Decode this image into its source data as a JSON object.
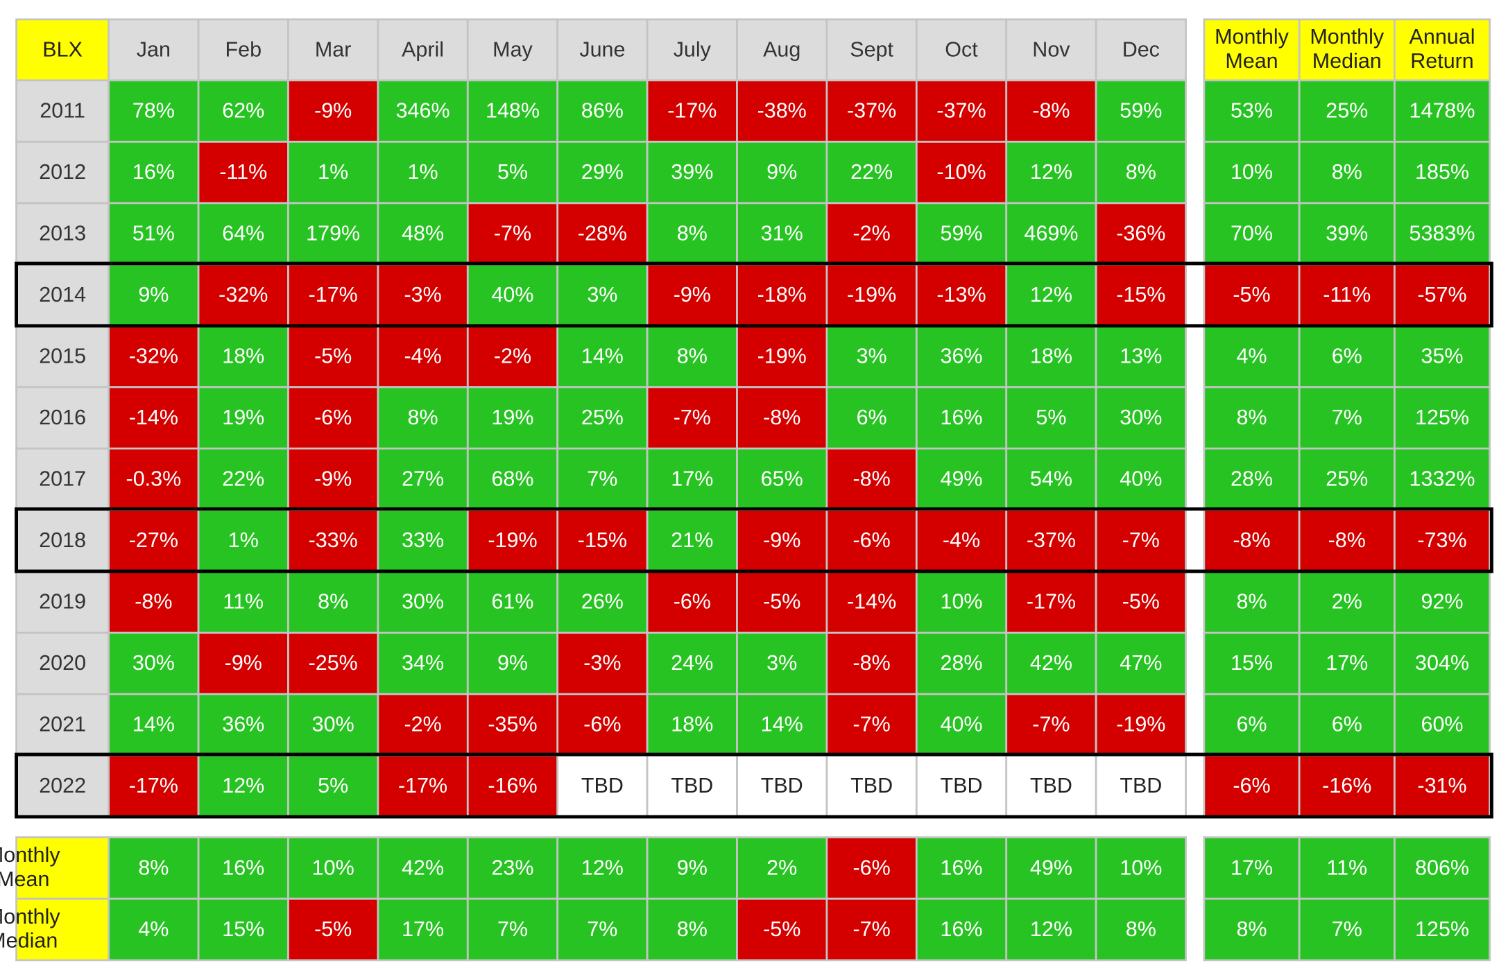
{
  "table": {
    "corner": "BLX",
    "months": [
      "Jan",
      "Feb",
      "Mar",
      "April",
      "May",
      "June",
      "July",
      "Aug",
      "Sept",
      "Oct",
      "Nov",
      "Dec"
    ],
    "summary_headers": [
      [
        "Monthly",
        "Mean"
      ],
      [
        "Monthly",
        "Median"
      ],
      [
        "Annual",
        "Return"
      ]
    ],
    "rows": [
      {
        "label": "2011",
        "months": [
          "78%",
          "62%",
          "-9%",
          "346%",
          "148%",
          "86%",
          "-17%",
          "-38%",
          "-37%",
          "-37%",
          "-8%",
          "59%"
        ],
        "summary": [
          "53%",
          "25%",
          "1478%"
        ]
      },
      {
        "label": "2012",
        "months": [
          "16%",
          "-11%",
          "1%",
          "1%",
          "5%",
          "29%",
          "39%",
          "9%",
          "22%",
          "-10%",
          "12%",
          "8%"
        ],
        "summary": [
          "10%",
          "8%",
          "185%"
        ]
      },
      {
        "label": "2013",
        "months": [
          "51%",
          "64%",
          "179%",
          "48%",
          "-7%",
          "-28%",
          "8%",
          "31%",
          "-2%",
          "59%",
          "469%",
          "-36%"
        ],
        "summary": [
          "70%",
          "39%",
          "5383%"
        ]
      },
      {
        "label": "2014",
        "months": [
          "9%",
          "-32%",
          "-17%",
          "-3%",
          "40%",
          "3%",
          "-9%",
          "-18%",
          "-19%",
          "-13%",
          "12%",
          "-15%"
        ],
        "summary": [
          "-5%",
          "-11%",
          "-57%"
        ]
      },
      {
        "label": "2015",
        "months": [
          "-32%",
          "18%",
          "-5%",
          "-4%",
          "-2%",
          "14%",
          "8%",
          "-19%",
          "3%",
          "36%",
          "18%",
          "13%"
        ],
        "summary": [
          "4%",
          "6%",
          "35%"
        ]
      },
      {
        "label": "2016",
        "months": [
          "-14%",
          "19%",
          "-6%",
          "8%",
          "19%",
          "25%",
          "-7%",
          "-8%",
          "6%",
          "16%",
          "5%",
          "30%"
        ],
        "summary": [
          "8%",
          "7%",
          "125%"
        ]
      },
      {
        "label": "2017",
        "months": [
          "-0.3%",
          "22%",
          "-9%",
          "27%",
          "68%",
          "7%",
          "17%",
          "65%",
          "-8%",
          "49%",
          "54%",
          "40%"
        ],
        "summary": [
          "28%",
          "25%",
          "1332%"
        ]
      },
      {
        "label": "2018",
        "months": [
          "-27%",
          "1%",
          "-33%",
          "33%",
          "-19%",
          "-15%",
          "21%",
          "-9%",
          "-6%",
          "-4%",
          "-37%",
          "-7%"
        ],
        "summary": [
          "-8%",
          "-8%",
          "-73%"
        ]
      },
      {
        "label": "2019",
        "months": [
          "-8%",
          "11%",
          "8%",
          "30%",
          "61%",
          "26%",
          "-6%",
          "-5%",
          "-14%",
          "10%",
          "-17%",
          "-5%"
        ],
        "summary": [
          "8%",
          "2%",
          "92%"
        ]
      },
      {
        "label": "2020",
        "months": [
          "30%",
          "-9%",
          "-25%",
          "34%",
          "9%",
          "-3%",
          "24%",
          "3%",
          "-8%",
          "28%",
          "42%",
          "47%"
        ],
        "summary": [
          "15%",
          "17%",
          "304%"
        ]
      },
      {
        "label": "2021",
        "months": [
          "14%",
          "36%",
          "30%",
          "-2%",
          "-35%",
          "-6%",
          "18%",
          "14%",
          "-7%",
          "40%",
          "-7%",
          "-19%"
        ],
        "summary": [
          "6%",
          "6%",
          "60%"
        ]
      },
      {
        "label": "2022",
        "months": [
          "-17%",
          "12%",
          "5%",
          "-17%",
          "-16%",
          "TBD",
          "TBD",
          "TBD",
          "TBD",
          "TBD",
          "TBD",
          "TBD"
        ],
        "summary": [
          "-6%",
          "-16%",
          "-31%"
        ]
      }
    ],
    "footer": [
      {
        "label": [
          "Monthly",
          "Mean"
        ],
        "months": [
          "8%",
          "16%",
          "10%",
          "42%",
          "23%",
          "12%",
          "9%",
          "2%",
          "-6%",
          "16%",
          "49%",
          "10%"
        ],
        "summary": [
          "17%",
          "11%",
          "806%"
        ]
      },
      {
        "label": [
          "Monthly",
          "Median"
        ],
        "months": [
          "4%",
          "15%",
          "-5%",
          "17%",
          "7%",
          "7%",
          "8%",
          "-5%",
          "-7%",
          "16%",
          "12%",
          "8%"
        ],
        "summary": [
          "8%",
          "7%",
          "125%"
        ]
      }
    ]
  }
}
